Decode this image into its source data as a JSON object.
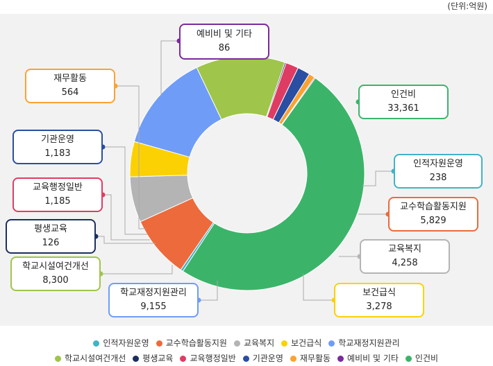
{
  "unit_label": "(단위:억원)",
  "chart_data": {
    "type": "pie",
    "donut": true,
    "title": "",
    "slices": [
      {
        "name": "인건비",
        "value": 33361,
        "value_label": "33,361",
        "color": "#3bb46a"
      },
      {
        "name": "인적자원운영",
        "value": 238,
        "value_label": "238",
        "color": "#3fb3c9"
      },
      {
        "name": "교수학습활동지원",
        "value": 5829,
        "value_label": "5,829",
        "color": "#ec6a3c"
      },
      {
        "name": "교육복지",
        "value": 4258,
        "value_label": "4,258",
        "color": "#b4b4b4"
      },
      {
        "name": "보건급식",
        "value": 3278,
        "value_label": "3,278",
        "color": "#fcd103"
      },
      {
        "name": "학교재정지원관리",
        "value": 9155,
        "value_label": "9,155",
        "color": "#6f9cf7"
      },
      {
        "name": "학교시설여건개선",
        "value": 8300,
        "value_label": "8,300",
        "color": "#9fc54b"
      },
      {
        "name": "평생교육",
        "value": 126,
        "value_label": "126",
        "color": "#1b2f5e"
      },
      {
        "name": "교육행정일반",
        "value": 1185,
        "value_label": "1,185",
        "color": "#df3c63"
      },
      {
        "name": "기관운영",
        "value": 1183,
        "value_label": "1,183",
        "color": "#2a4ea1"
      },
      {
        "name": "재무활동",
        "value": 564,
        "value_label": "564",
        "color": "#fba231"
      },
      {
        "name": "예비비 및 기타",
        "value": 86,
        "value_label": "86",
        "color": "#7b2a9c"
      }
    ],
    "legend_rows": [
      [
        "인적자원운영",
        "교수학습활동지원",
        "교육복지",
        "보건급식",
        "학교재정지원관리"
      ],
      [
        "학교시설여건개선",
        "평생교육",
        "교육행정일반",
        "기관운영",
        "재무활동",
        "예비비 및 기타",
        "인건비"
      ]
    ],
    "legend_position": "bottom"
  }
}
